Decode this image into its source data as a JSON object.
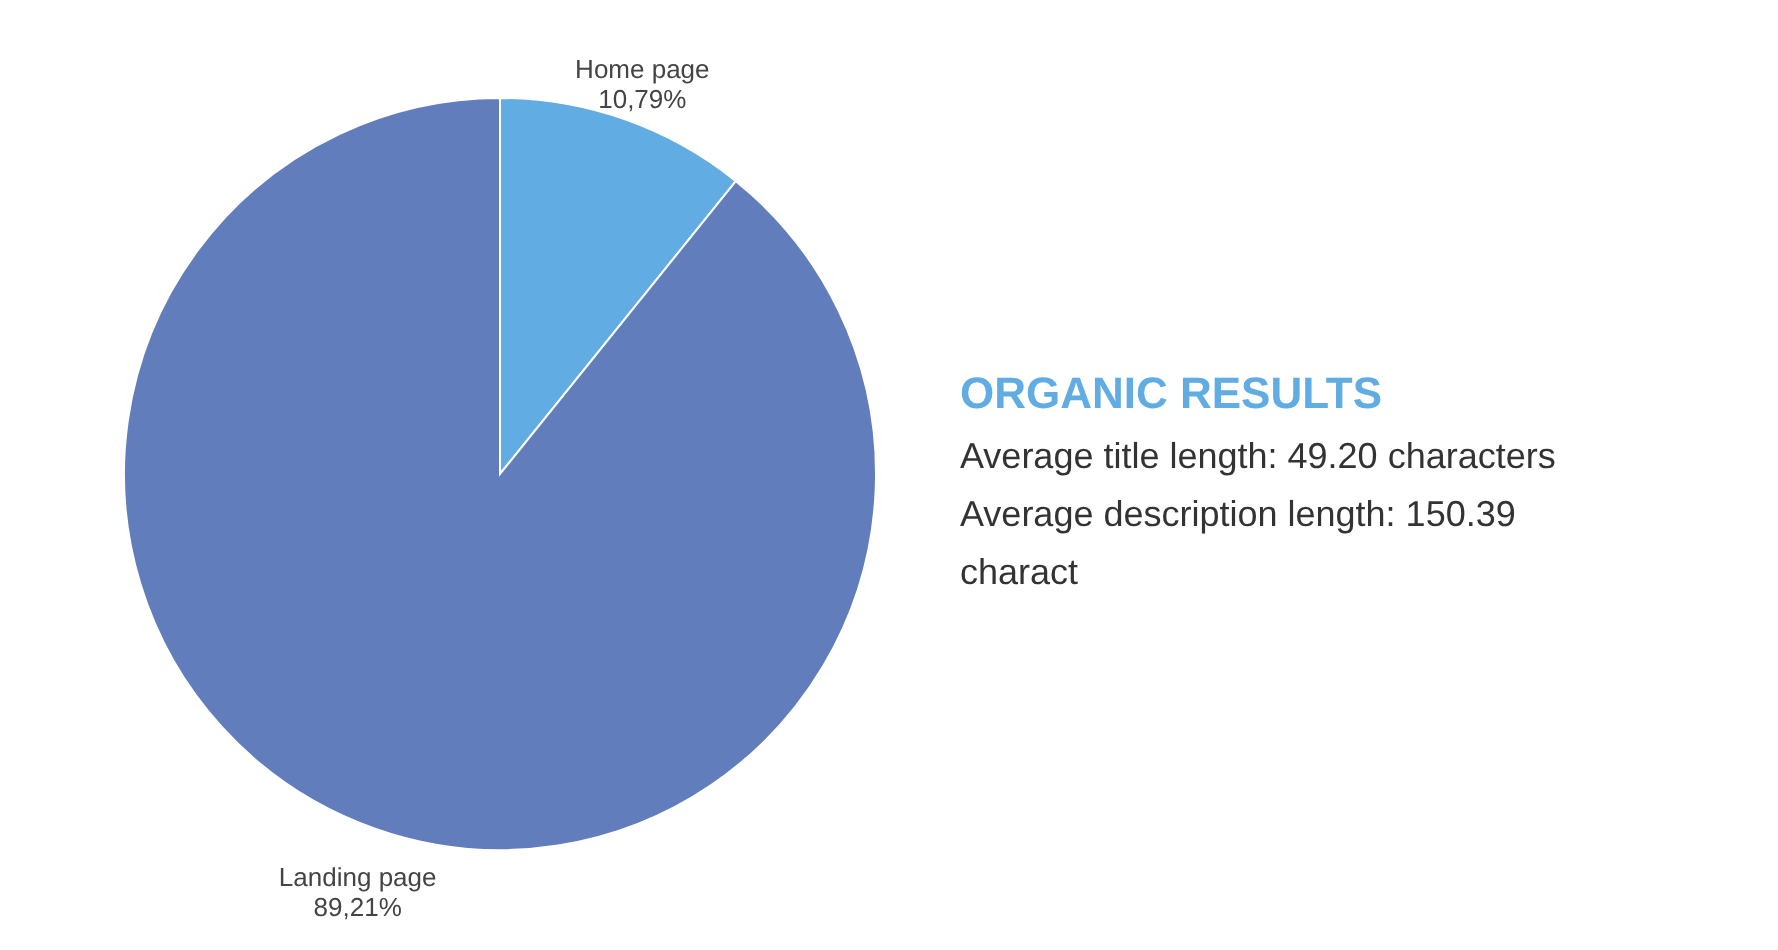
{
  "chart_data": {
    "type": "pie",
    "categories": [
      "Home page",
      "Landing page"
    ],
    "values": [
      10.79,
      89.21
    ],
    "value_labels": [
      "10,79%",
      "89,21%"
    ],
    "colors": [
      "#60ace3",
      "#627dbb"
    ],
    "title": "ORGANIC RESULTS",
    "annotations": [
      "Average title length: 49.20 characters",
      "Average description length: 150.39 charact"
    ]
  }
}
